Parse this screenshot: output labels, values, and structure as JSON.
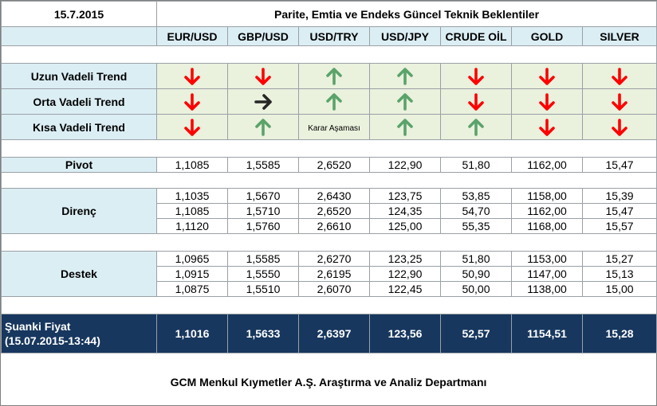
{
  "header": {
    "date": "15.7.2015",
    "title": "Parite, Emtia ve Endeks Güncel Teknik Beklentiler"
  },
  "columns": [
    "EUR/USD",
    "GBP/USD",
    "USD/TRY",
    "USD/JPY",
    "CRUDE OİL",
    "GOLD",
    "SILVER"
  ],
  "colors": {
    "down": "#ff0000",
    "up": "#5aa36a",
    "side": "#262626",
    "header_bg": "#dbeef4",
    "trend_bg": "#eaf1dd",
    "current_bg": "#17375e"
  },
  "trends": [
    {
      "label": "Uzun Vadeli Trend",
      "values": [
        "down",
        "down",
        "up",
        "up",
        "down",
        "down",
        "down"
      ]
    },
    {
      "label": "Orta Vadeli Trend",
      "values": [
        "down",
        "side",
        "up",
        "up",
        "down",
        "down",
        "down"
      ]
    },
    {
      "label": "Kısa Vadeli Trend",
      "values": [
        "down",
        "up",
        "text",
        "up",
        "up",
        "down",
        "down"
      ],
      "texts": {
        "2": "Karar Aşaması"
      }
    }
  ],
  "pivot": {
    "label": "Pivot",
    "values": [
      "1,1085",
      "1,5585",
      "2,6520",
      "122,90",
      "51,80",
      "1162,00",
      "15,47"
    ]
  },
  "resistance": {
    "label": "Direnç",
    "rows": [
      [
        "1,1035",
        "1,5670",
        "2,6430",
        "123,75",
        "53,85",
        "1158,00",
        "15,39"
      ],
      [
        "1,1085",
        "1,5710",
        "2,6520",
        "124,35",
        "54,70",
        "1162,00",
        "15,47"
      ],
      [
        "1,1120",
        "1,5760",
        "2,6610",
        "125,00",
        "55,35",
        "1168,00",
        "15,57"
      ]
    ]
  },
  "support": {
    "label": "Destek",
    "rows": [
      [
        "1,0965",
        "1,5585",
        "2,6270",
        "123,25",
        "51,80",
        "1153,00",
        "15,27"
      ],
      [
        "1,0915",
        "1,5550",
        "2,6195",
        "122,90",
        "50,90",
        "1147,00",
        "15,13"
      ],
      [
        "1,0875",
        "1,5510",
        "2,6070",
        "122,45",
        "50,00",
        "1138,00",
        "15,00"
      ]
    ]
  },
  "current": {
    "label_line1": "Şuanki Fiyat",
    "label_line2": "(15.07.2015-13:44)",
    "values": [
      "1,1016",
      "1,5633",
      "2,6397",
      "123,56",
      "52,57",
      "1154,51",
      "15,28"
    ]
  },
  "footer": "GCM Menkul Kıymetler A.Ş. Araştırma ve Analiz Departmanı"
}
